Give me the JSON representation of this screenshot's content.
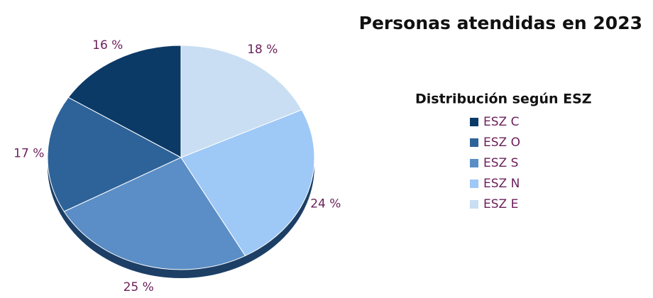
{
  "chart_data": {
    "type": "pie",
    "title": "Personas atendidas en 2023",
    "legend_title": "Distribución según ESZ",
    "categories": [
      "ESZ C",
      "ESZ O",
      "ESZ S",
      "ESZ N",
      "ESZ E"
    ],
    "values": [
      16,
      17,
      25,
      24,
      18
    ],
    "value_labels": [
      "16 %",
      "17 %",
      "25 %",
      "24 %",
      "18 %"
    ],
    "colors": [
      "#0b3a66",
      "#2e6399",
      "#5b8ec6",
      "#9ec8f6",
      "#c9def2"
    ],
    "legend": "right"
  }
}
